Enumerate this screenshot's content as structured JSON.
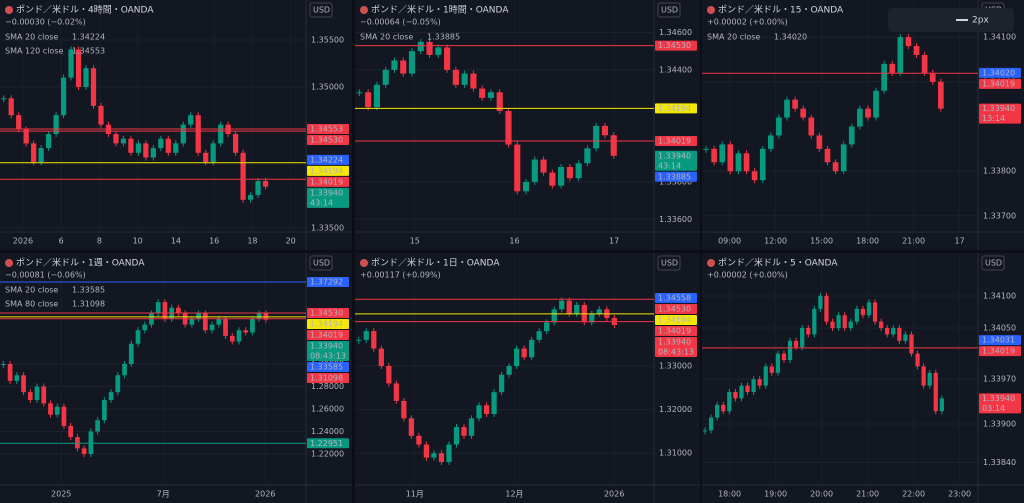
{
  "panels": [
    {
      "title": "ポンド／米ドル・4時間・OANDA",
      "change": "−0.00030 (−0.02%)",
      "change_color": "#089981",
      "currency": "USD",
      "smas": [
        {
          "name": "SMA 20 close",
          "value": "1.34224",
          "color": "#2962ff"
        },
        {
          "name": "SMA 120 close",
          "value": "1.34553",
          "color": "#f23645"
        }
      ],
      "ylim": [
        1.33457,
        1.35926
      ],
      "yticks": [
        {
          "value": 1.355,
          "label": "1.35500"
        },
        {
          "value": 1.35,
          "label": "1.35000"
        },
        {
          "value": 1.335,
          "label": "1.33500"
        }
      ],
      "times": [
        "2026",
        "6",
        "8",
        "10",
        "14",
        "16",
        "18",
        "20"
      ],
      "closes": [
        1.3488,
        1.347,
        1.3455,
        1.344,
        1.342,
        1.3435,
        1.345,
        1.347,
        1.351,
        1.354,
        1.35,
        1.352,
        1.348,
        1.346,
        1.345,
        1.344,
        1.3445,
        1.343,
        1.344,
        1.3425,
        1.3435,
        1.3445,
        1.343,
        1.344,
        1.346,
        1.347,
        1.343,
        1.342,
        1.344,
        1.346,
        1.345,
        1.343,
        1.338,
        1.3385,
        1.34,
        1.3394
      ],
      "price_labels": [
        {
          "value": 1.34553,
          "label": "1.34553",
          "color": "#f23645",
          "line": true
        },
        {
          "value": 1.3453,
          "label": "1.34530",
          "color": "#f23645",
          "line": true
        },
        {
          "value": 1.34224,
          "label": "1.34224",
          "color": "#2962ff"
        },
        {
          "value": 1.34194,
          "label": "1.34194",
          "color": "#f5e800",
          "line": true
        },
        {
          "value": 1.34019,
          "label": "1.34019",
          "color": "#f23645",
          "line": true
        },
        {
          "value": 1.3394,
          "label": "1.33940",
          "sub": "43:14",
          "color": "#089981"
        }
      ]
    },
    {
      "title": "ポンド／米ドル・1時間・OANDA",
      "change": "−0.00064 (−0.05%)",
      "change_color": "#089981",
      "currency": "USD",
      "smas": [
        {
          "name": "SMA 20 close",
          "value": "1.33885",
          "color": "#2962ff"
        }
      ],
      "ylim": [
        1.33532,
        1.34774
      ],
      "yticks": [
        {
          "value": 1.346,
          "label": "1.34600"
        },
        {
          "value": 1.344,
          "label": "1.34400"
        },
        {
          "value": 1.338,
          "label": "1.33800"
        },
        {
          "value": 1.336,
          "label": "1.33600"
        }
      ],
      "times": [
        "15",
        "16",
        "17"
      ],
      "closes": [
        1.3428,
        1.342,
        1.3432,
        1.344,
        1.3445,
        1.3438,
        1.345,
        1.3455,
        1.3448,
        1.3452,
        1.344,
        1.3432,
        1.3438,
        1.343,
        1.3425,
        1.3428,
        1.3418,
        1.34,
        1.3375,
        1.338,
        1.3392,
        1.3385,
        1.3378,
        1.3388,
        1.3382,
        1.339,
        1.3398,
        1.341,
        1.3405,
        1.3394
      ],
      "price_labels": [
        {
          "value": 1.3453,
          "label": "1.34530",
          "color": "#f23645",
          "line": true
        },
        {
          "value": 1.34194,
          "label": "1.34194",
          "color": "#f5e800",
          "line": true
        },
        {
          "value": 1.34019,
          "label": "1.34019",
          "color": "#f23645",
          "line": true
        },
        {
          "value": 1.3394,
          "label": "1.33940",
          "sub": "43:14",
          "color": "#089981"
        },
        {
          "value": 1.33885,
          "label": "1.33885",
          "color": "#2962ff"
        }
      ]
    },
    {
      "title": "ポンド／米ドル・15・OANDA",
      "change": "+0.00002 (+0.00%)",
      "change_color": "#f23645",
      "currency": "USD",
      "toolbar": "2px",
      "smas": [
        {
          "name": "SMA 20 close",
          "value": "1.34020",
          "color": "#2962ff"
        }
      ],
      "ylim": [
        1.33664,
        1.34183
      ],
      "yticks": [
        {
          "value": 1.341,
          "label": "1.34100"
        },
        {
          "value": 1.34,
          "label": "1.34000"
        },
        {
          "value": 1.338,
          "label": "1.33800"
        },
        {
          "value": 1.337,
          "label": "1.33700"
        }
      ],
      "times": [
        "09:00",
        "12:00",
        "15:00",
        "18:00",
        "21:00",
        "17"
      ],
      "closes": [
        1.3385,
        1.3382,
        1.3386,
        1.338,
        1.3384,
        1.338,
        1.3378,
        1.3385,
        1.3388,
        1.3392,
        1.3396,
        1.3394,
        1.3392,
        1.3388,
        1.3385,
        1.3382,
        1.338,
        1.3386,
        1.339,
        1.3394,
        1.3392,
        1.3398,
        1.3404,
        1.3402,
        1.341,
        1.3408,
        1.3406,
        1.3402,
        1.34,
        1.3394
      ],
      "price_labels": [
        {
          "value": 1.3402,
          "label": "1.34020",
          "color": "#2962ff"
        },
        {
          "value": 1.34019,
          "label": "1.34019",
          "color": "#f23645",
          "line": true
        },
        {
          "value": 1.3394,
          "label": "1.33940",
          "sub": "13:14",
          "color": "#f23645"
        }
      ]
    },
    {
      "title": "ポンド／米ドル・1週・OANDA",
      "change": "−0.00081 (−0.06%)",
      "change_color": "#089981",
      "currency": "USD",
      "smas": [
        {
          "name": "SMA 20 close",
          "value": "1.33585",
          "color": "#2962ff"
        },
        {
          "name": "SMA 80 close",
          "value": "1.31098",
          "color": "#f23645"
        }
      ],
      "ylim": [
        1.19244,
        1.39867
      ],
      "yticks": [
        {
          "value": 1.3,
          "label": "1.30000"
        },
        {
          "value": 1.28,
          "label": "1.28000"
        },
        {
          "value": 1.26,
          "label": "1.26000"
        },
        {
          "value": 1.24,
          "label": "1.24000"
        },
        {
          "value": 1.22,
          "label": "1.22000"
        }
      ],
      "times": [
        "2025",
        "7月",
        "2026"
      ],
      "closes": [
        1.3,
        1.285,
        1.29,
        1.275,
        1.268,
        1.28,
        1.265,
        1.255,
        1.262,
        1.245,
        1.235,
        1.225,
        1.22,
        1.24,
        1.25,
        1.268,
        1.275,
        1.29,
        1.3,
        1.318,
        1.33,
        1.335,
        1.345,
        1.355,
        1.34,
        1.35,
        1.345,
        1.335,
        1.34,
        1.345,
        1.33,
        1.335,
        1.34,
        1.325,
        1.32,
        1.33,
        1.328,
        1.34,
        1.345,
        1.3394
      ],
      "price_labels": [
        {
          "value": 1.37292,
          "label": "1.37292",
          "color": "#2962ff",
          "line": true
        },
        {
          "value": 1.3453,
          "label": "1.34530",
          "color": "#f23645",
          "line": true
        },
        {
          "value": 1.34194,
          "label": "1.34194",
          "color": "#f5e800",
          "line": true
        },
        {
          "value": 1.34019,
          "label": "1.34019",
          "color": "#f23645",
          "line": true
        },
        {
          "value": 1.3394,
          "label": "1.33940",
          "sub": "08:43:13",
          "color": "#089981"
        },
        {
          "value": 1.33585,
          "label": "1.33585",
          "color": "#2962ff"
        },
        {
          "value": 1.31098,
          "label": "1.31098",
          "color": "#f23645"
        },
        {
          "value": 1.22951,
          "label": "1.22951",
          "color": "#089981",
          "line": true
        }
      ]
    },
    {
      "title": "ポンド／米ドル・1日・OANDA",
      "change": "+0.00117 (+0.09%)",
      "change_color": "#f23645",
      "currency": "USD",
      "smas": [],
      "ylim": [
        1.30272,
        1.35591
      ],
      "yticks": [
        {
          "value": 1.33,
          "label": "1.33000"
        },
        {
          "value": 1.32,
          "label": "1.32000"
        },
        {
          "value": 1.31,
          "label": "1.31000"
        }
      ],
      "times": [
        "11月",
        "12月",
        "2026"
      ],
      "closes": [
        1.336,
        1.338,
        1.334,
        1.33,
        1.326,
        1.322,
        1.318,
        1.314,
        1.312,
        1.309,
        1.31,
        1.308,
        1.312,
        1.316,
        1.314,
        1.318,
        1.321,
        1.319,
        1.324,
        1.328,
        1.33,
        1.334,
        1.332,
        1.336,
        1.338,
        1.34,
        1.343,
        1.345,
        1.342,
        1.344,
        1.34,
        1.342,
        1.343,
        1.341,
        1.3394
      ],
      "price_labels": [
        {
          "value": 1.34558,
          "label": "1.34558",
          "color": "#2962ff"
        },
        {
          "value": 1.3453,
          "label": "1.34530",
          "color": "#f23645",
          "line": true
        },
        {
          "value": 1.34194,
          "label": "1.34194",
          "color": "#f5e800",
          "line": true
        },
        {
          "value": 1.34019,
          "label": "1.34019",
          "color": "#f23645",
          "line": true
        },
        {
          "value": 1.3394,
          "label": "1.33940",
          "sub": "08:43:13",
          "color": "#f23645"
        }
      ]
    },
    {
      "title": "ポンド／米ドル・5・OANDA",
      "change": "+0.00002 (+0.00%)",
      "change_color": "#f23645",
      "currency": "USD",
      "smas": [],
      "ylim": [
        1.338047,
        1.341672
      ],
      "yticks": [
        {
          "value": 1.341,
          "label": "1.34100"
        },
        {
          "value": 1.3405,
          "label": "1.34050"
        },
        {
          "value": 1.3397,
          "label": "1.33970"
        },
        {
          "value": 1.339,
          "label": "1.33900"
        },
        {
          "value": 1.3384,
          "label": "1.33840"
        }
      ],
      "times": [
        "18:00",
        "19:00",
        "20:00",
        "21:00",
        "22:00",
        "23:00"
      ],
      "closes": [
        1.3389,
        1.3391,
        1.3393,
        1.3392,
        1.3395,
        1.3394,
        1.3396,
        1.3395,
        1.3397,
        1.3396,
        1.3399,
        1.3398,
        1.3401,
        1.34,
        1.3403,
        1.3402,
        1.3405,
        1.3404,
        1.3408,
        1.341,
        1.3406,
        1.3405,
        1.3407,
        1.3405,
        1.3406,
        1.3408,
        1.3407,
        1.3409,
        1.3406,
        1.3405,
        1.3404,
        1.3405,
        1.3403,
        1.3404,
        1.3401,
        1.3399,
        1.3396,
        1.3398,
        1.3392,
        1.3394
      ],
      "price_labels": [
        {
          "value": 1.34031,
          "label": "1.34031",
          "color": "#2962ff"
        },
        {
          "value": 1.34019,
          "label": "1.34019",
          "color": "#f23645",
          "line": true
        },
        {
          "value": 1.3394,
          "label": "1.33940",
          "sub": "03:14",
          "color": "#f23645"
        }
      ]
    }
  ]
}
